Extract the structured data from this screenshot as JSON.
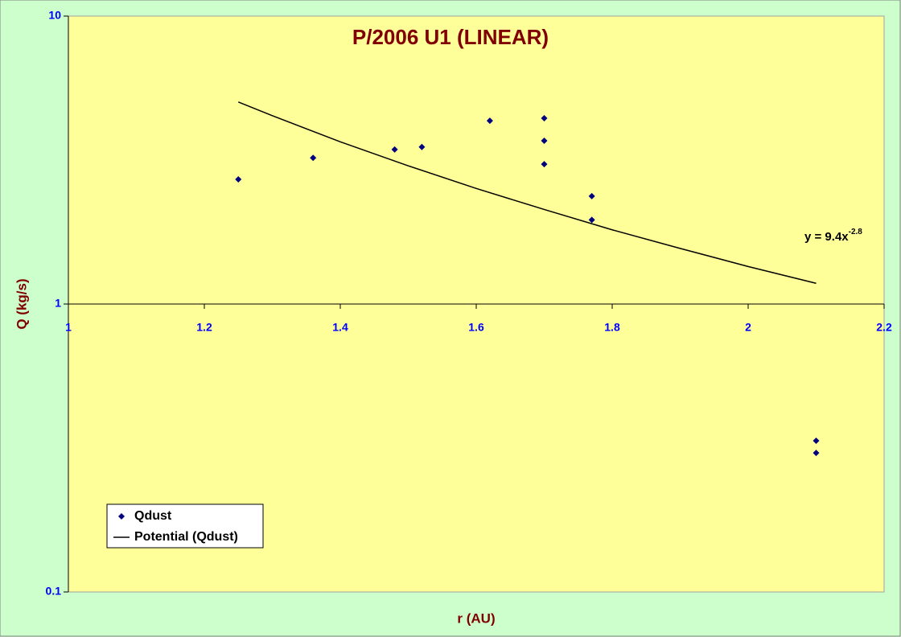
{
  "chart_data": {
    "type": "scatter",
    "title": "P/2006 U1 (LINEAR)",
    "x_label": "r (AU)",
    "y_label": "Q (kg/s)",
    "yscale": "log",
    "xlim": [
      1,
      2.2
    ],
    "xticks": [
      1,
      1.2,
      1.4,
      1.6,
      1.8,
      2,
      2.2
    ],
    "ylim": [
      0.1,
      10
    ],
    "yticks": [
      0.1,
      1,
      10
    ],
    "x_axis_crosses": 1,
    "legend": "lower left",
    "series": [
      {
        "name": "Qdust",
        "color": "#000080",
        "mode": "markers",
        "x": [
          1.25,
          1.36,
          1.48,
          1.52,
          1.62,
          1.7,
          1.7,
          1.7,
          1.77,
          1.77,
          2.1,
          2.1
        ],
        "values": [
          2.71,
          3.22,
          3.44,
          3.51,
          4.33,
          4.42,
          3.69,
          3.06,
          2.37,
          1.96,
          0.335,
          0.304
        ]
      },
      {
        "name": "Potential (Qdust)",
        "color": "#000000",
        "mode": "line",
        "x": [
          1.25,
          1.3,
          1.4,
          1.5,
          1.6,
          1.7,
          1.8,
          1.9,
          2.0,
          2.1
        ],
        "values": [
          5.03,
          4.51,
          3.66,
          3.02,
          2.52,
          2.13,
          1.81,
          1.56,
          1.35,
          1.18
        ]
      }
    ],
    "annotation": {
      "text": "y = 9.4x",
      "superscript": "-2.8"
    }
  }
}
